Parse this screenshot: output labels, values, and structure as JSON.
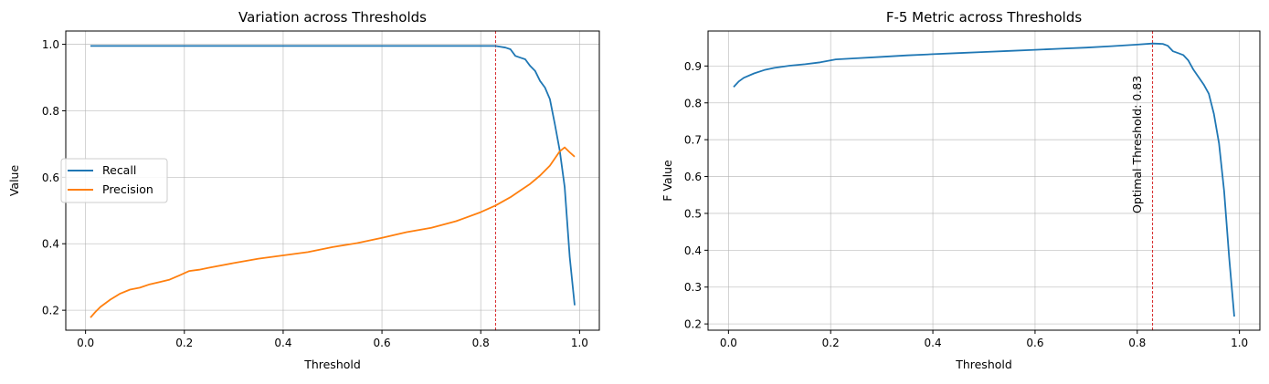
{
  "chart_data": [
    {
      "type": "line",
      "title": "Variation across Thresholds",
      "xlabel": "Threshold",
      "ylabel": "Value",
      "xlim": [
        -0.04,
        1.04
      ],
      "ylim": [
        0.14,
        1.04
      ],
      "xticks": [
        0.0,
        0.2,
        0.4,
        0.6,
        0.8,
        1.0
      ],
      "xtick_labels": [
        "0.0",
        "0.2",
        "0.4",
        "0.6",
        "0.8",
        "1.0"
      ],
      "yticks": [
        0.2,
        0.4,
        0.6,
        0.8,
        1.0
      ],
      "ytick_labels": [
        "0.2",
        "0.4",
        "0.6",
        "0.8",
        "1.0"
      ],
      "grid": true,
      "legend_position": "center-left",
      "vline": {
        "x": 0.83,
        "color": "#d62728"
      },
      "series": [
        {
          "name": "Recall",
          "color": "#1f77b4",
          "x": [
            0.01,
            0.1,
            0.2,
            0.3,
            0.4,
            0.5,
            0.6,
            0.7,
            0.8,
            0.83,
            0.85,
            0.86,
            0.87,
            0.88,
            0.89,
            0.9,
            0.91,
            0.92,
            0.93,
            0.94,
            0.95,
            0.96,
            0.97,
            0.98,
            0.99
          ],
          "y": [
            0.995,
            0.995,
            0.995,
            0.995,
            0.995,
            0.995,
            0.995,
            0.995,
            0.995,
            0.995,
            0.99,
            0.985,
            0.965,
            0.96,
            0.955,
            0.935,
            0.92,
            0.89,
            0.87,
            0.835,
            0.76,
            0.68,
            0.57,
            0.36,
            0.215
          ]
        },
        {
          "name": "Precision",
          "color": "#ff7f0e",
          "x": [
            0.01,
            0.02,
            0.03,
            0.05,
            0.07,
            0.09,
            0.11,
            0.13,
            0.15,
            0.17,
            0.19,
            0.21,
            0.23,
            0.25,
            0.3,
            0.35,
            0.4,
            0.45,
            0.5,
            0.55,
            0.6,
            0.65,
            0.7,
            0.75,
            0.8,
            0.83,
            0.86,
            0.88,
            0.9,
            0.92,
            0.94,
            0.96,
            0.97,
            0.98,
            0.99
          ],
          "y": [
            0.178,
            0.195,
            0.21,
            0.232,
            0.25,
            0.262,
            0.268,
            0.278,
            0.285,
            0.292,
            0.305,
            0.318,
            0.322,
            0.328,
            0.342,
            0.355,
            0.365,
            0.375,
            0.39,
            0.402,
            0.418,
            0.435,
            0.448,
            0.468,
            0.495,
            0.515,
            0.54,
            0.56,
            0.58,
            0.605,
            0.635,
            0.678,
            0.69,
            0.675,
            0.662
          ]
        }
      ]
    },
    {
      "type": "line",
      "title": "F-5 Metric across Thresholds",
      "xlabel": "Threshold",
      "ylabel": "F Value",
      "xlim": [
        -0.04,
        1.04
      ],
      "ylim": [
        0.183,
        0.995
      ],
      "xticks": [
        0.0,
        0.2,
        0.4,
        0.6,
        0.8,
        1.0
      ],
      "xtick_labels": [
        "0.0",
        "0.2",
        "0.4",
        "0.6",
        "0.8",
        "1.0"
      ],
      "yticks": [
        0.2,
        0.3,
        0.4,
        0.5,
        0.6,
        0.7,
        0.8,
        0.9
      ],
      "ytick_labels": [
        "0.2",
        "0.3",
        "0.4",
        "0.5",
        "0.6",
        "0.7",
        "0.8",
        "0.9"
      ],
      "grid": true,
      "vline": {
        "x": 0.83,
        "color": "#d62728"
      },
      "annotation": {
        "text": "Optimal Threshold: 0.83",
        "x": 0.8,
        "y": 0.5,
        "rotation": 90
      },
      "series": [
        {
          "color": "#1f77b4",
          "x": [
            0.01,
            0.02,
            0.03,
            0.05,
            0.07,
            0.09,
            0.12,
            0.15,
            0.18,
            0.21,
            0.25,
            0.3,
            0.35,
            0.4,
            0.45,
            0.5,
            0.55,
            0.6,
            0.65,
            0.7,
            0.75,
            0.8,
            0.83,
            0.85,
            0.86,
            0.87,
            0.88,
            0.89,
            0.9,
            0.91,
            0.92,
            0.93,
            0.94,
            0.95,
            0.96,
            0.97,
            0.98,
            0.99
          ],
          "y": [
            0.843,
            0.858,
            0.868,
            0.88,
            0.889,
            0.895,
            0.901,
            0.905,
            0.91,
            0.918,
            0.921,
            0.925,
            0.929,
            0.932,
            0.935,
            0.938,
            0.941,
            0.944,
            0.947,
            0.95,
            0.954,
            0.958,
            0.961,
            0.96,
            0.955,
            0.94,
            0.935,
            0.93,
            0.915,
            0.89,
            0.87,
            0.85,
            0.825,
            0.77,
            0.69,
            0.56,
            0.38,
            0.22
          ]
        }
      ]
    }
  ]
}
